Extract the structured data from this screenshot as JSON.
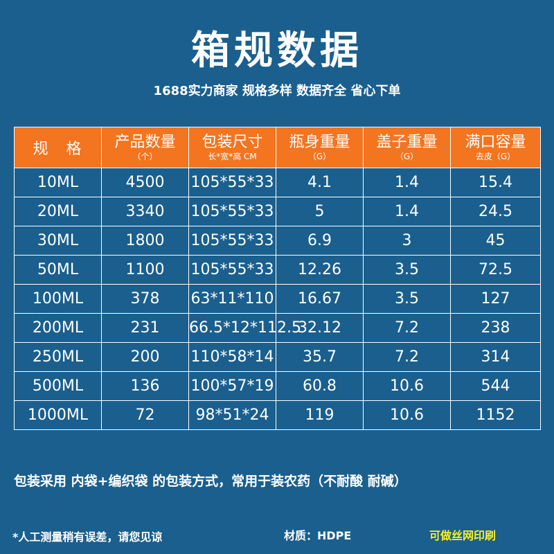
{
  "title": "箱规数据",
  "subtitle": "1688实力商家 规格多样 数据齐全 省心下单",
  "table": {
    "headers": [
      {
        "main": "规　格",
        "sub": ""
      },
      {
        "main": "产品数量",
        "sub": "（个）"
      },
      {
        "main": "包装尺寸",
        "sub": "长*宽*高 CM"
      },
      {
        "main": "瓶身重量",
        "sub": "（G）"
      },
      {
        "main": "盖子重量",
        "sub": "（G）"
      },
      {
        "main": "满口容量",
        "sub": "去皮（G）"
      }
    ],
    "rows": [
      [
        "10ML",
        "4500",
        "105*55*33",
        "4.1",
        "1.4",
        "15.4"
      ],
      [
        "20ML",
        "3340",
        "105*55*33",
        "5",
        "1.4",
        "24.5"
      ],
      [
        "30ML",
        "1800",
        "105*55*33",
        "6.9",
        "3",
        "45"
      ],
      [
        "50ML",
        "1100",
        "105*55*33",
        "12.26",
        "3.5",
        "72.5"
      ],
      [
        "100ML",
        "378",
        "63*11*110",
        "16.67",
        "3.5",
        "127"
      ],
      [
        "200ML",
        "231",
        "66.5*12*112.5",
        "32.12",
        "7.2",
        "238"
      ],
      [
        "250ML",
        "200",
        "110*58*14",
        "35.7",
        "7.2",
        "314"
      ],
      [
        "500ML",
        "136",
        "100*57*19",
        "60.8",
        "10.6",
        "544"
      ],
      [
        "1000ML",
        "72",
        "98*51*24",
        "119",
        "10.6",
        "1152"
      ]
    ]
  },
  "footer": {
    "packaging": "包装采用 内袋+编织袋 的包装方式，常用于装农药（不耐酸 耐碱）",
    "note": "*人工测量稍有误差，请您见谅",
    "material": "材质：HDPE",
    "print": "可做丝网印刷"
  },
  "colors": {
    "background": "#1a5f8e",
    "header": "#f37520",
    "highlight": "#f5f02a"
  }
}
